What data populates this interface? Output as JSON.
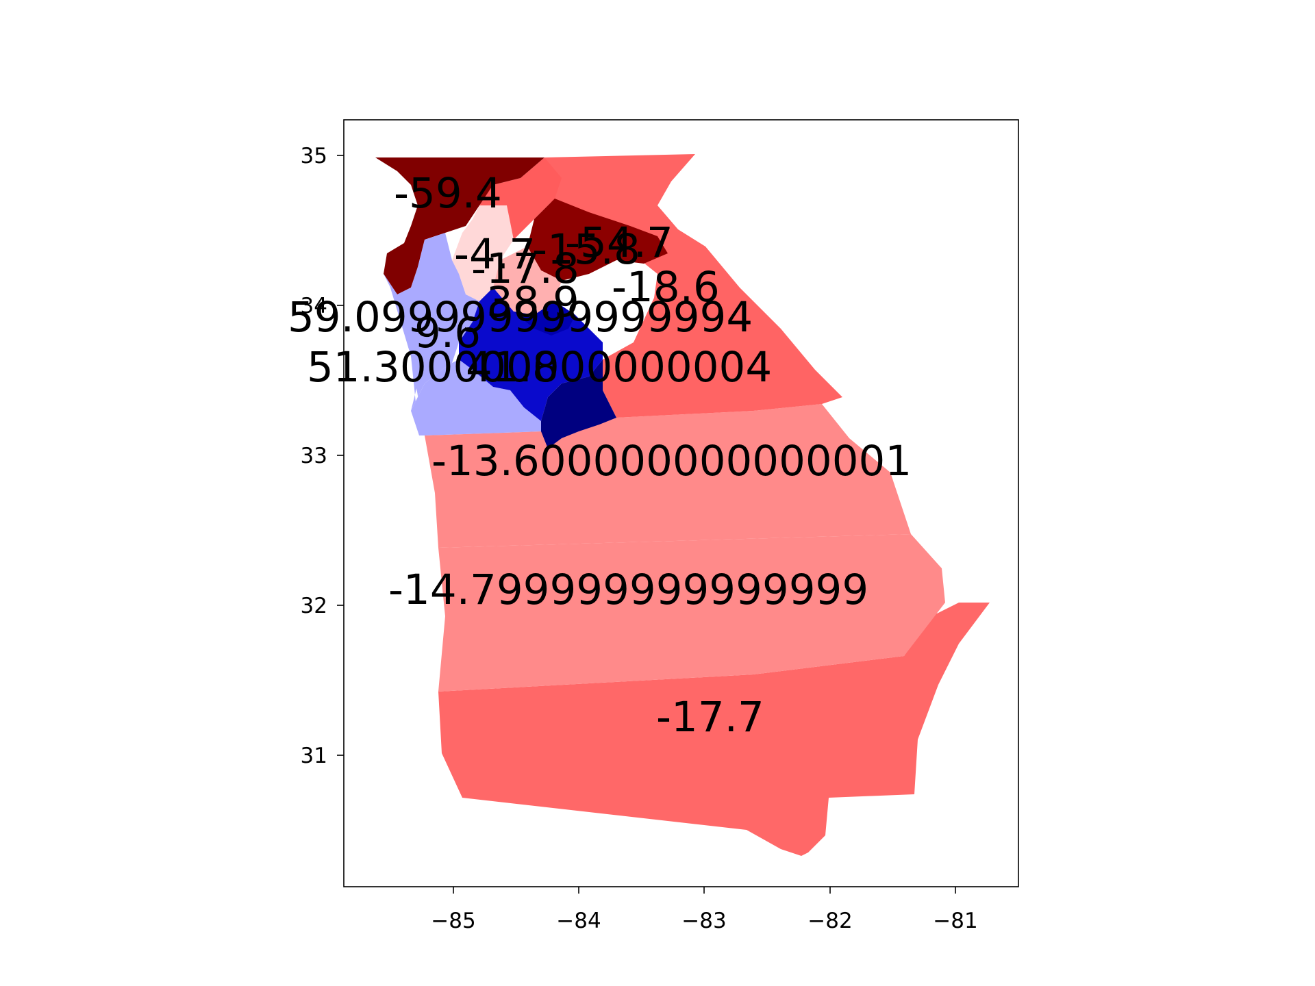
{
  "x_ticks": [
    "−85",
    "−84",
    "−83",
    "−82",
    "−81"
  ],
  "y_ticks": [
    "35",
    "34",
    "33",
    "32",
    "31"
  ],
  "districts": [
    {
      "id": "d14",
      "label": "-59.4",
      "color": "#800000"
    },
    {
      "id": "d9",
      "label": "-54.7",
      "color": "#8c0000"
    },
    {
      "id": "d10",
      "label": "-18.6",
      "color": "#ff6464"
    },
    {
      "id": "d11",
      "label": "-15.8",
      "color": "#ff5c5c"
    },
    {
      "id": "d6",
      "label": "-4.7",
      "color": "#ffd8d8"
    },
    {
      "id": "d7",
      "label": "-17.8",
      "color": "#ffb0b0"
    },
    {
      "id": "d4",
      "label": "38.9",
      "color": "#0000b0"
    },
    {
      "id": "d13",
      "label": "59.099999999999994",
      "color": "#0a0acc"
    },
    {
      "id": "d5",
      "label": "9.6",
      "color": "#aaaaff"
    },
    {
      "id": "d3",
      "label": "51.300000000000004",
      "color": "#aaaaff"
    },
    {
      "id": "d2",
      "label": "41.8",
      "color": "#000080"
    },
    {
      "id": "d12",
      "label": "-13.600000000000001",
      "color": "#ff8a8a"
    },
    {
      "id": "d8",
      "label": "-14.799999999999999",
      "color": "#ff8a8a"
    },
    {
      "id": "d1",
      "label": "-17.7",
      "color": "#ff6868"
    }
  ]
}
